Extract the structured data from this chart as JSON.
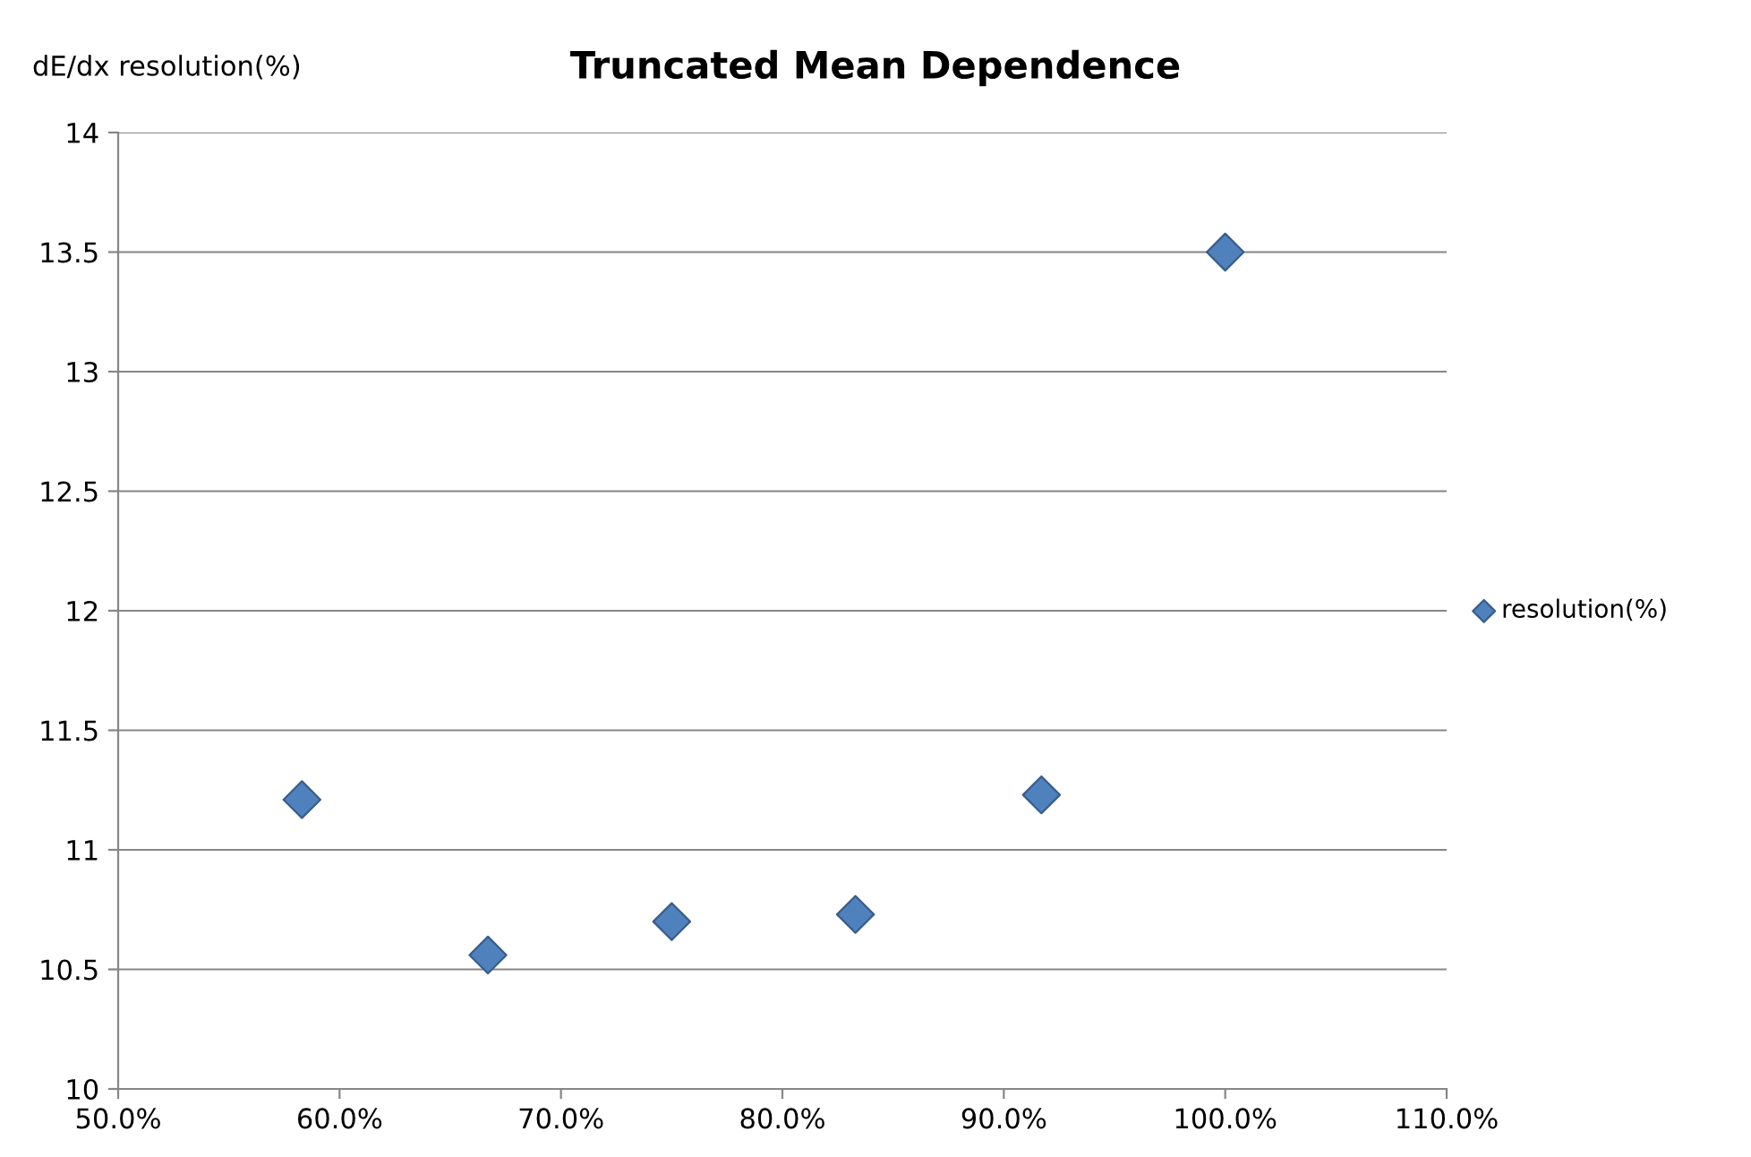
{
  "chart_data": {
    "type": "scatter",
    "title": "Truncated Mean Dependence",
    "ylabel": "dE/dx resolution(%)",
    "series": [
      {
        "name": "resolution(%)",
        "color": "#4f81bd",
        "x": [
          58.3,
          66.7,
          75.0,
          83.3,
          91.7,
          100.0
        ],
        "values": [
          11.21,
          10.56,
          10.7,
          10.73,
          11.23,
          13.5
        ]
      }
    ],
    "xlim": [
      50,
      110
    ],
    "xticks": [
      {
        "value": 50,
        "label": "50.0%"
      },
      {
        "value": 60,
        "label": "60.0%"
      },
      {
        "value": 70,
        "label": "70.0%"
      },
      {
        "value": 80,
        "label": "80.0%"
      },
      {
        "value": 90,
        "label": "90.0%"
      },
      {
        "value": 100,
        "label": "100.0%"
      },
      {
        "value": 110,
        "label": "110.0%"
      }
    ],
    "ylim": [
      10,
      14
    ],
    "yticks": [
      10,
      10.5,
      11,
      11.5,
      12,
      12.5,
      13,
      13.5,
      14
    ],
    "grid": "y",
    "legend": "right",
    "marker": "diamond"
  }
}
